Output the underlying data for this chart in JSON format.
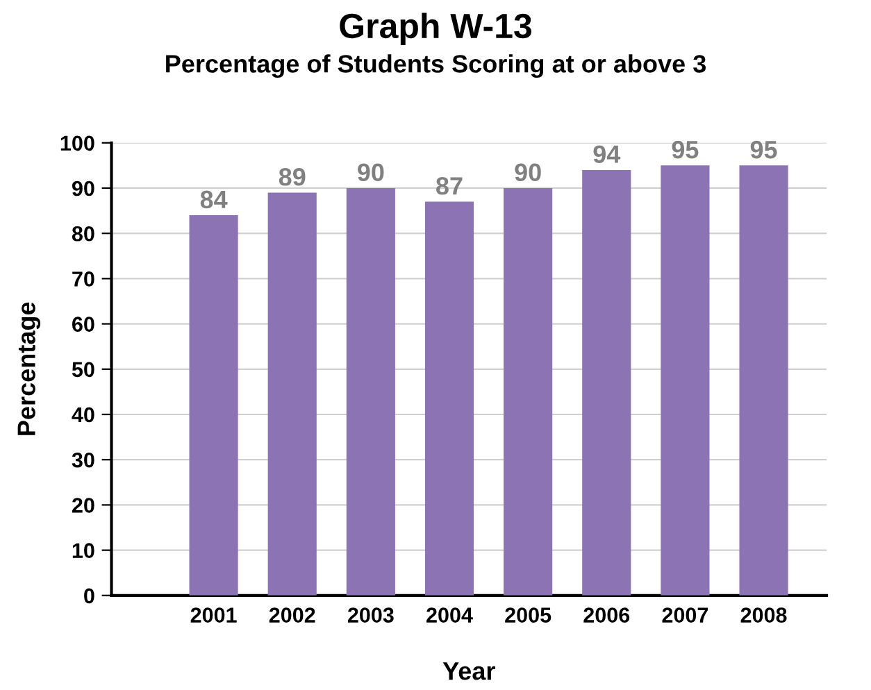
{
  "chart_data": {
    "type": "bar",
    "title": "Graph W-13",
    "subtitle": "Percentage of Students Scoring at or above 3",
    "xlabel": "Year",
    "ylabel": "Percentage",
    "categories": [
      "2001",
      "2002",
      "2003",
      "2004",
      "2005",
      "2006",
      "2007",
      "2008"
    ],
    "values": [
      84,
      89,
      90,
      87,
      90,
      94,
      95,
      95
    ],
    "color": "#8b73b4",
    "data_labels": true,
    "ylim": [
      0,
      100
    ],
    "yticks": [
      0,
      10,
      20,
      30,
      40,
      50,
      60,
      70,
      80,
      90,
      100
    ],
    "grid": "y",
    "legend": false
  }
}
